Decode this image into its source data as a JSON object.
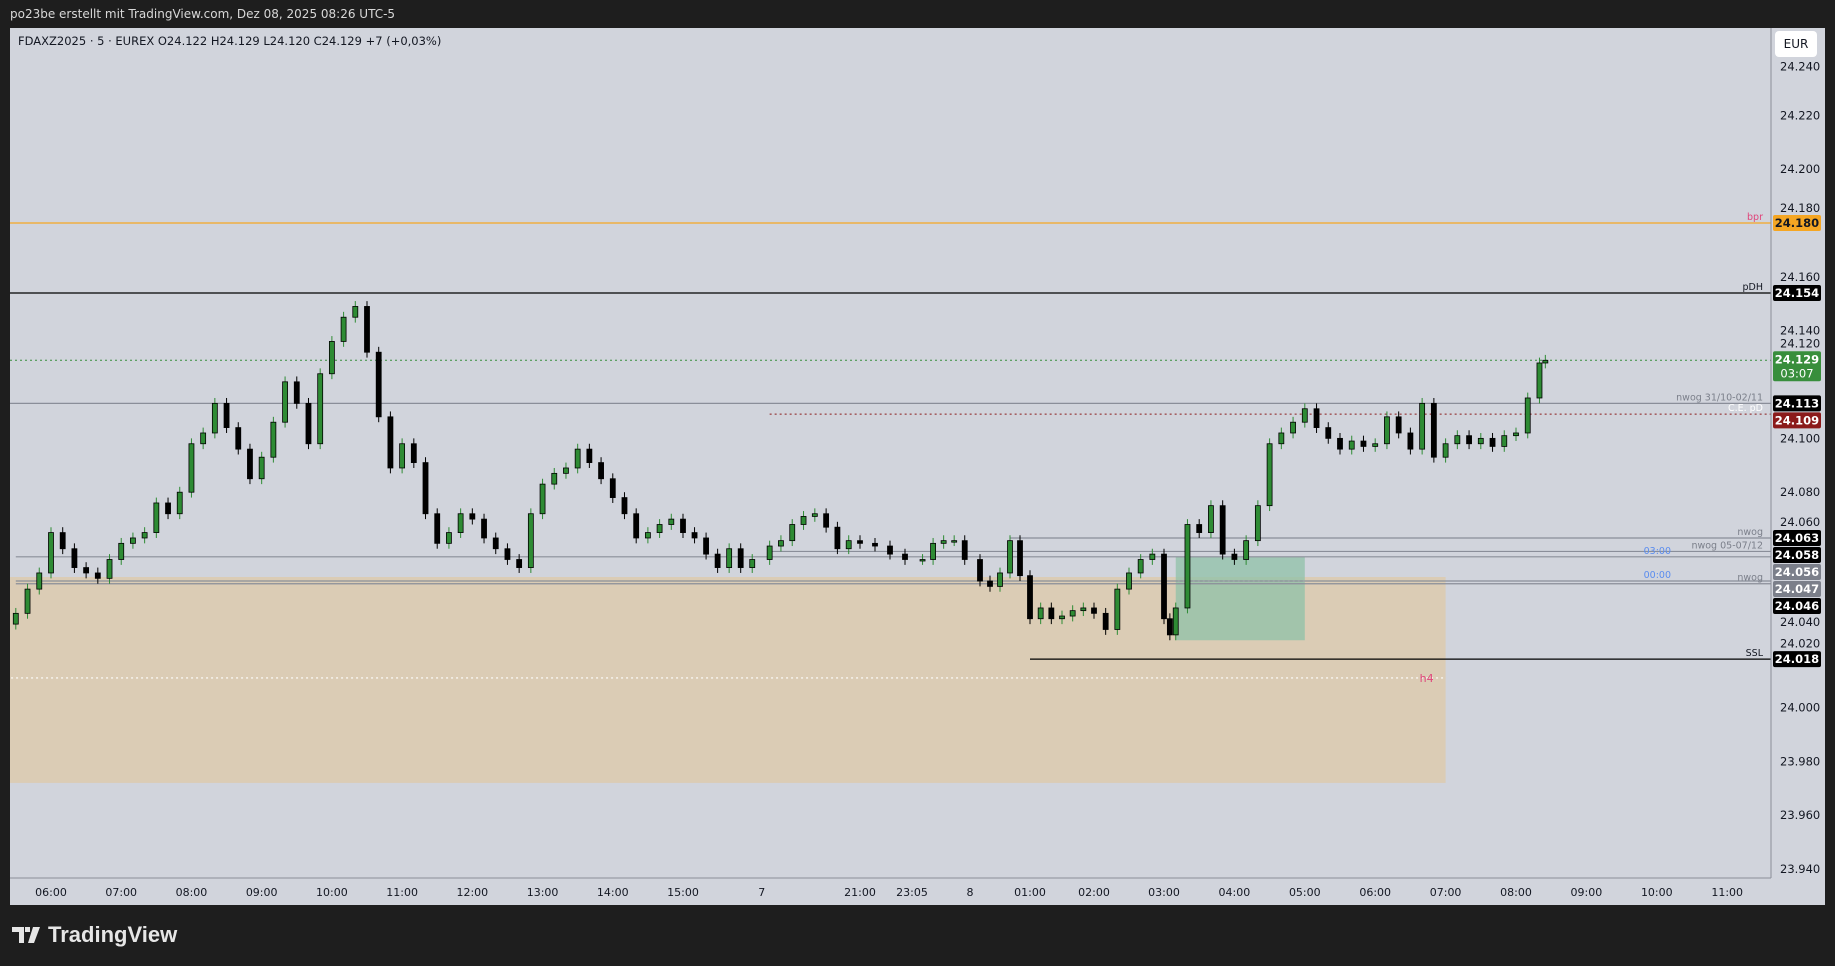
{
  "header": {
    "caption": "po23be erstellt mit TradingView.com, Dez 08, 2025 08:26 UTC-5"
  },
  "legend": {
    "text": "FDAXZ2025 · 5 · EUREX  O24.122  H24.129  L24.120  C24.129  +7 (+0,03%)"
  },
  "currency": "EUR",
  "footer": {
    "brand": "TradingView"
  },
  "colors": {
    "background": "#d1d4dc",
    "frame": "#1e1e1e",
    "up": "#2e8b34",
    "down": "#000000",
    "bpr": "#f5a623",
    "last": "#388e3c",
    "ce": "#8b1a1a",
    "tag_gray": "#7b7f8a",
    "zone_tan": "#dccbb0",
    "zone_green": "#8fc1a8",
    "label_red": "#e0457b",
    "label_blue": "#5b8def"
  },
  "chart_data": {
    "type": "candlestick",
    "symbol": "FDAXZ2025",
    "interval": "5",
    "exchange": "EUREX",
    "ylim": [
      23.94,
      24.245
    ],
    "y_ticks": [
      "24.240",
      "24.220",
      "24.200",
      "24.180",
      "24.160",
      "24.140",
      "24.120",
      "24.100",
      "24.080",
      "24.060",
      "24.040",
      "24.020",
      "24.000",
      "23.980",
      "23.960",
      "23.940"
    ],
    "x_ticks": [
      {
        "t": "05 06:00",
        "label": "06:00"
      },
      {
        "t": "05 07:00",
        "label": "07:00"
      },
      {
        "t": "05 08:00",
        "label": "08:00"
      },
      {
        "t": "05 09:00",
        "label": "09:00"
      },
      {
        "t": "05 10:00",
        "label": "10:00"
      },
      {
        "t": "05 11:00",
        "label": "11:00"
      },
      {
        "t": "05 12:00",
        "label": "12:00"
      },
      {
        "t": "05 13:00",
        "label": "13:00"
      },
      {
        "t": "05 14:00",
        "label": "14:00"
      },
      {
        "t": "05 15:00",
        "label": "15:00"
      },
      {
        "t": "07 00:00",
        "label": "7"
      },
      {
        "t": "07 21:00",
        "label": "21:00"
      },
      {
        "t": "07 23:05",
        "label": "23:05"
      },
      {
        "t": "08 00:00",
        "label": "8"
      },
      {
        "t": "08 01:00",
        "label": "01:00"
      },
      {
        "t": "08 02:00",
        "label": "02:00"
      },
      {
        "t": "08 03:00",
        "label": "03:00"
      },
      {
        "t": "08 04:00",
        "label": "04:00"
      },
      {
        "t": "08 05:00",
        "label": "05:00"
      },
      {
        "t": "08 06:00",
        "label": "06:00"
      },
      {
        "t": "08 07:00",
        "label": "07:00"
      },
      {
        "t": "08 08:00",
        "label": "08:00"
      },
      {
        "t": "08 09:00",
        "label": "09:00"
      },
      {
        "t": "08 10:00",
        "label": "10:00"
      },
      {
        "t": "08 11:00",
        "label": "11:00"
      }
    ],
    "closes": [
      [
        "05 05:30",
        24.035
      ],
      [
        "05 05:40",
        24.044
      ],
      [
        "05 05:50",
        24.05
      ],
      [
        "05 06:00",
        24.065
      ],
      [
        "05 06:10",
        24.059
      ],
      [
        "05 06:20",
        24.052
      ],
      [
        "05 06:30",
        24.05
      ],
      [
        "05 06:40",
        24.048
      ],
      [
        "05 06:50",
        24.055
      ],
      [
        "05 07:00",
        24.061
      ],
      [
        "05 07:10",
        24.063
      ],
      [
        "05 07:20",
        24.065
      ],
      [
        "05 07:30",
        24.076
      ],
      [
        "05 07:40",
        24.072
      ],
      [
        "05 07:50",
        24.08
      ],
      [
        "05 08:00",
        24.098
      ],
      [
        "05 08:10",
        24.102
      ],
      [
        "05 08:20",
        24.113
      ],
      [
        "05 08:30",
        24.104
      ],
      [
        "05 08:40",
        24.096
      ],
      [
        "05 08:50",
        24.085
      ],
      [
        "05 09:00",
        24.093
      ],
      [
        "05 09:10",
        24.106
      ],
      [
        "05 09:20",
        24.121
      ],
      [
        "05 09:30",
        24.113
      ],
      [
        "05 09:40",
        24.098
      ],
      [
        "05 09:50",
        24.124
      ],
      [
        "05 10:00",
        24.136
      ],
      [
        "05 10:10",
        24.145
      ],
      [
        "05 10:20",
        24.149
      ],
      [
        "05 10:30",
        24.132
      ],
      [
        "05 10:40",
        24.108
      ],
      [
        "05 10:50",
        24.089
      ],
      [
        "05 11:00",
        24.098
      ],
      [
        "05 11:10",
        24.091
      ],
      [
        "05 11:20",
        24.072
      ],
      [
        "05 11:30",
        24.061
      ],
      [
        "05 11:40",
        24.065
      ],
      [
        "05 11:50",
        24.072
      ],
      [
        "05 12:00",
        24.07
      ],
      [
        "05 12:10",
        24.063
      ],
      [
        "05 12:20",
        24.059
      ],
      [
        "05 12:30",
        24.055
      ],
      [
        "05 12:40",
        24.052
      ],
      [
        "05 12:50",
        24.072
      ],
      [
        "05 13:00",
        24.083
      ],
      [
        "05 13:10",
        24.087
      ],
      [
        "05 13:20",
        24.089
      ],
      [
        "05 13:30",
        24.096
      ],
      [
        "05 13:40",
        24.091
      ],
      [
        "05 13:50",
        24.085
      ],
      [
        "05 14:00",
        24.078
      ],
      [
        "05 14:10",
        24.072
      ],
      [
        "05 14:20",
        24.063
      ],
      [
        "05 14:30",
        24.065
      ],
      [
        "05 14:40",
        24.068
      ],
      [
        "05 14:50",
        24.07
      ],
      [
        "05 15:00",
        24.065
      ],
      [
        "05 15:10",
        24.063
      ],
      [
        "05 15:20",
        24.057
      ],
      [
        "05 15:30",
        24.052
      ],
      [
        "05 15:40",
        24.059
      ],
      [
        "05 15:50",
        24.052
      ],
      [
        "05 16:00",
        24.055
      ],
      [
        "07 19:40",
        24.06
      ],
      [
        "07 19:50",
        24.062
      ],
      [
        "07 20:00",
        24.068
      ],
      [
        "07 20:10",
        24.071
      ],
      [
        "07 20:20",
        24.072
      ],
      [
        "07 20:30",
        24.067
      ],
      [
        "07 20:40",
        24.059
      ],
      [
        "07 20:50",
        24.062
      ],
      [
        "07 21:00",
        24.061
      ],
      [
        "07 21:20",
        24.06
      ],
      [
        "07 21:40",
        24.057
      ],
      [
        "07 22:00",
        24.055
      ],
      [
        "07 23:15",
        24.055
      ],
      [
        "07 23:25",
        24.061
      ],
      [
        "07 23:35",
        24.062
      ],
      [
        "07 23:45",
        24.062
      ],
      [
        "07 23:55",
        24.055
      ],
      [
        "08 00:10",
        24.047
      ],
      [
        "08 00:20",
        24.045
      ],
      [
        "08 00:30",
        24.05
      ],
      [
        "08 00:40",
        24.062
      ],
      [
        "08 00:50",
        24.049
      ],
      [
        "08 01:00",
        24.033
      ],
      [
        "08 01:10",
        24.037
      ],
      [
        "08 01:20",
        24.033
      ],
      [
        "08 01:30",
        24.034
      ],
      [
        "08 01:40",
        24.036
      ],
      [
        "08 01:50",
        24.037
      ],
      [
        "08 02:00",
        24.035
      ],
      [
        "08 02:10",
        24.029
      ],
      [
        "08 02:20",
        24.044
      ],
      [
        "08 02:30",
        24.05
      ],
      [
        "08 02:40",
        24.055
      ],
      [
        "08 02:50",
        24.057
      ],
      [
        "08 03:00",
        24.033
      ],
      [
        "08 03:05",
        24.027
      ],
      [
        "08 03:10",
        24.037
      ],
      [
        "08 03:20",
        24.068
      ],
      [
        "08 03:30",
        24.065
      ],
      [
        "08 03:40",
        24.075
      ],
      [
        "08 03:50",
        24.057
      ],
      [
        "08 04:00",
        24.055
      ],
      [
        "08 04:10",
        24.062
      ],
      [
        "08 04:20",
        24.075
      ],
      [
        "08 04:30",
        24.098
      ],
      [
        "08 04:40",
        24.102
      ],
      [
        "08 04:50",
        24.106
      ],
      [
        "08 05:00",
        24.111
      ],
      [
        "08 05:10",
        24.104
      ],
      [
        "08 05:20",
        24.1
      ],
      [
        "08 05:30",
        24.096
      ],
      [
        "08 05:40",
        24.099
      ],
      [
        "08 05:50",
        24.097
      ],
      [
        "08 06:00",
        24.098
      ],
      [
        "08 06:10",
        24.108
      ],
      [
        "08 06:20",
        24.102
      ],
      [
        "08 06:30",
        24.096
      ],
      [
        "08 06:40",
        24.113
      ],
      [
        "08 06:50",
        24.093
      ],
      [
        "08 07:00",
        24.098
      ],
      [
        "08 07:10",
        24.101
      ],
      [
        "08 07:20",
        24.098
      ],
      [
        "08 07:30",
        24.1
      ],
      [
        "08 07:40",
        24.097
      ],
      [
        "08 07:50",
        24.101
      ],
      [
        "08 08:00",
        24.102
      ],
      [
        "08 08:10",
        24.115
      ],
      [
        "08 08:20",
        24.128
      ],
      [
        "08 08:25",
        24.129
      ]
    ],
    "levels": [
      {
        "price": 24.18,
        "label": "bpr",
        "tag": "24.180",
        "style": "solid",
        "color": "#f5a623",
        "tagColor": "#f5a623",
        "tagText": "#131722",
        "labelColor": "#e0457b",
        "from": "start"
      },
      {
        "price": 24.154,
        "label": "pDH",
        "tag": "24.154",
        "style": "solid",
        "color": "#000000",
        "tagColor": "#000000",
        "tagText": "#ffffff",
        "labelColor": "#131722",
        "from": "start"
      },
      {
        "price": 24.129,
        "label": "",
        "tag": "24.129",
        "tag2": "03:07",
        "style": "dotted",
        "color": "#388e3c",
        "tagColor": "#388e3c",
        "tagText": "#ffffff",
        "from": "start"
      },
      {
        "price": 24.113,
        "label": "nwog 31/10-02/11",
        "tag": "24.113",
        "style": "solid",
        "color": "#8a8e99",
        "tagColor": "#000000",
        "tagText": "#ffffff",
        "labelColor": "#7b7f8a",
        "from": "start"
      },
      {
        "price": 24.109,
        "label": "C.E. pD",
        "tag": "24.109",
        "style": "dotted",
        "color": "#8b1a1a",
        "tagColor": "#8b1a1a",
        "tagText": "#ffffff",
        "labelColor": "#ffffff",
        "from": "07 19:40"
      },
      {
        "price": 24.063,
        "label": "nwog",
        "tag": "24.063",
        "style": "solid",
        "color": "#8a8e99",
        "tagColor": "#000000",
        "tagText": "#ffffff",
        "labelColor": "#7b7f8a",
        "from": "08 00:40"
      },
      {
        "price": 24.058,
        "label": "nwog 05-07/12",
        "tag": "24.058",
        "style": "solid",
        "color": "#8a8e99",
        "tagColor": "#000000",
        "tagText": "#ffffff",
        "labelColor": "#7b7f8a",
        "from": "07 19:40"
      },
      {
        "price": 24.056,
        "label": "03:00",
        "tag": "24.056",
        "style": "solid",
        "color": "#8a8e99",
        "tagColor": "#7b7f8a",
        "tagText": "#ffffff",
        "labelColor": "#5b8def",
        "from": "05 05:30"
      },
      {
        "price": 24.047,
        "label": "00:00",
        "tag": "24.047",
        "style": "solid",
        "color": "#8a8e99",
        "tagColor": "#7b7f8a",
        "tagText": "#ffffff",
        "labelColor": "#5b8def",
        "from": "05 05:30"
      },
      {
        "price": 24.046,
        "label": "nwog",
        "tag": "24.046",
        "style": "solid",
        "color": "#8a8e99",
        "tagColor": "#000000",
        "tagText": "#ffffff",
        "labelColor": "#7b7f8a",
        "from": "05 05:30"
      },
      {
        "price": 24.018,
        "label": "SSL",
        "tag": "24.018",
        "style": "solid",
        "color": "#000000",
        "tagColor": "#000000",
        "tagText": "#ffffff",
        "labelColor": "#131722",
        "from": "08 01:00"
      }
    ],
    "zones": [
      {
        "name": "h4",
        "top": 24.0485,
        "bottom": 23.972,
        "from": "05 05:20",
        "to": "08 07:00",
        "color": "#dccbb0",
        "mid": 24.011,
        "labelColor": "#e0457b"
      },
      {
        "name": "",
        "top": 24.056,
        "bottom": 24.025,
        "from": "08 03:10",
        "to": "08 05:00",
        "color": "#8fc1a8",
        "mid": 24.047
      }
    ]
  }
}
